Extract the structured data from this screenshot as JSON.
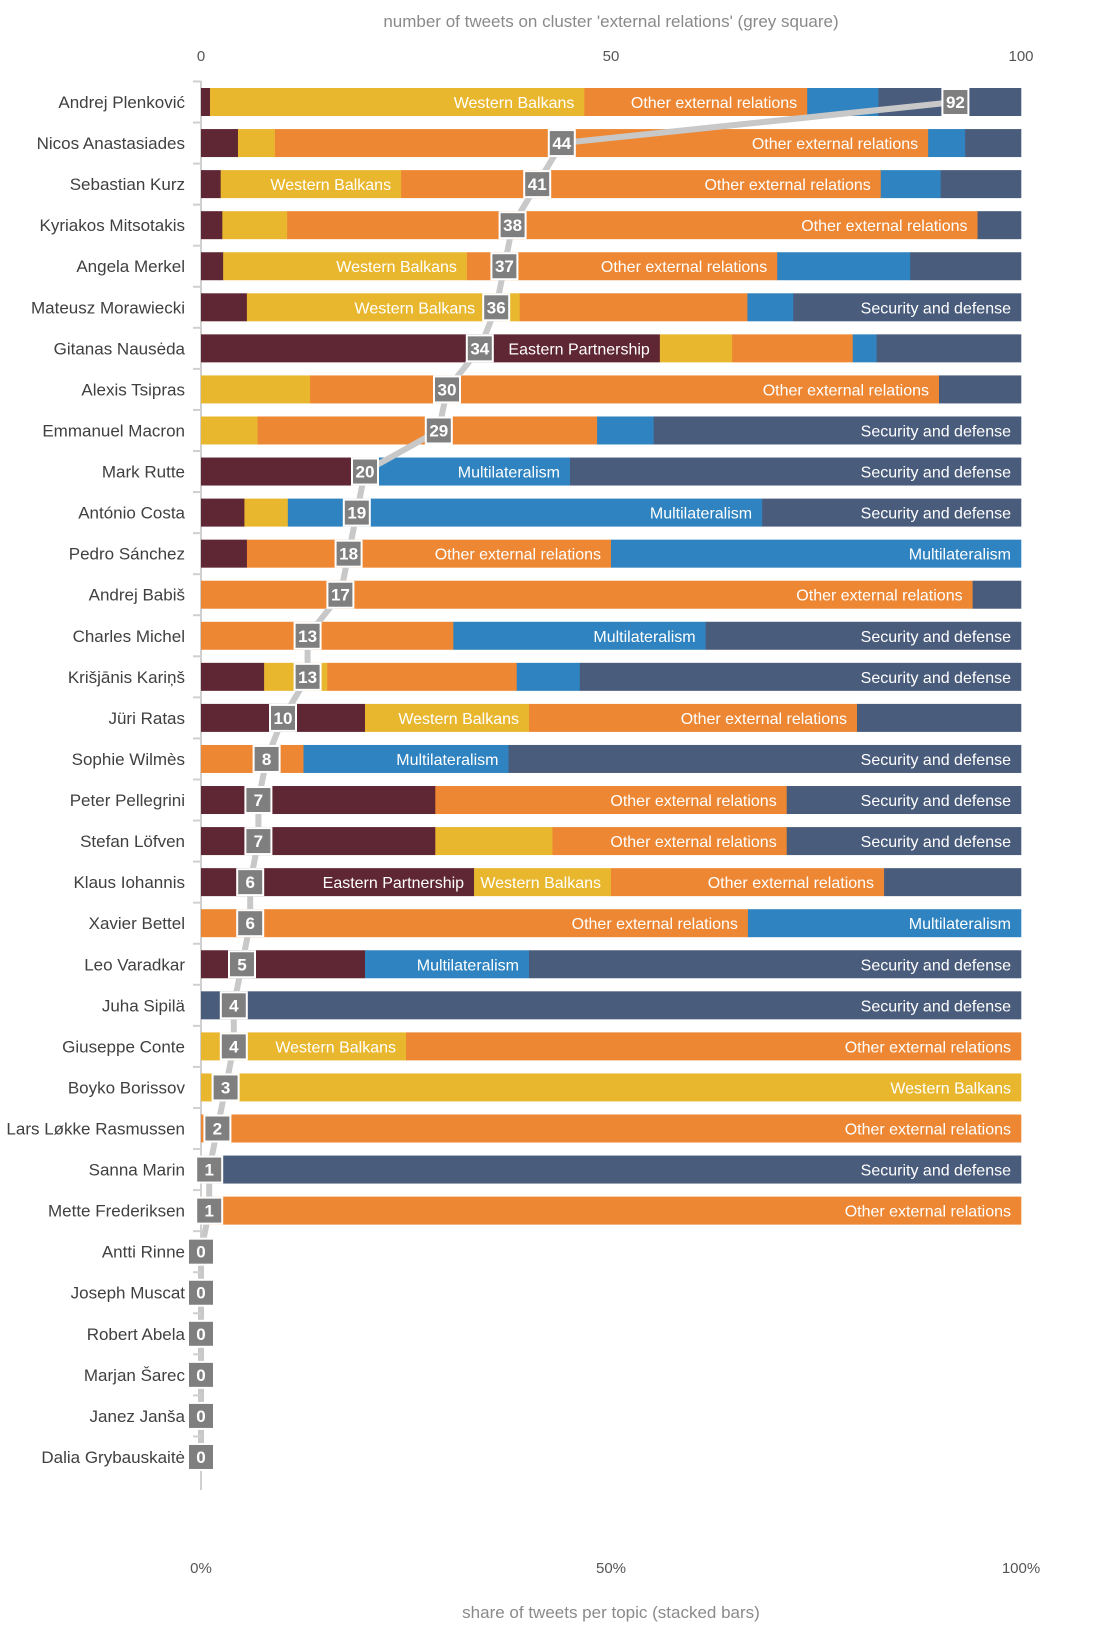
{
  "chart_data": {
    "type": "bar",
    "orientation": "horizontal-stacked",
    "top_axis_title": "number of tweets on cluster 'external relations' (grey square)",
    "bottom_axis_title": "share of tweets per topic (stacked bars)",
    "top_ticks": [
      "0",
      "50",
      "100"
    ],
    "top_range": [
      0,
      100
    ],
    "bottom_ticks": [
      "0%",
      "50%",
      "100%"
    ],
    "bottom_range": [
      0,
      100
    ],
    "grid": false,
    "legend": "none",
    "series": [
      {
        "name": "Eastern Partnership",
        "color": "#5f2634"
      },
      {
        "name": "Western Balkans",
        "color": "#e9b72e"
      },
      {
        "name": "Other external relations",
        "color": "#ed8733"
      },
      {
        "name": "Multilateralism",
        "color": "#2f83c0"
      },
      {
        "name": "Security and defense",
        "color": "#4a5c7b"
      }
    ],
    "marker_color": "#7f7f7f",
    "line_color": "#c8c8c8",
    "rows": [
      {
        "name": "Andrej Plenković",
        "count": 92,
        "shares": [
          1.1,
          45.7,
          27.2,
          8.7,
          17.4
        ],
        "labels": [
          "",
          "Western Balkans",
          "Other external relations",
          "",
          ""
        ]
      },
      {
        "name": "Nicos Anastasiades",
        "count": 44,
        "shares": [
          4.5,
          4.5,
          79.5,
          4.5,
          6.8
        ],
        "labels": [
          "",
          "",
          "Other external relations",
          "",
          ""
        ]
      },
      {
        "name": "Sebastian Kurz",
        "count": 41,
        "shares": [
          2.4,
          22.0,
          58.5,
          7.3,
          9.8
        ],
        "labels": [
          "",
          "Western Balkans",
          "Other external relations",
          "",
          ""
        ]
      },
      {
        "name": "Kyriakos Mitsotakis",
        "count": 38,
        "shares": [
          2.6,
          7.9,
          84.2,
          0,
          5.3
        ],
        "labels": [
          "",
          "",
          "Other external relations",
          "",
          ""
        ]
      },
      {
        "name": "Angela Merkel",
        "count": 37,
        "shares": [
          2.7,
          29.7,
          37.8,
          16.2,
          13.5
        ],
        "labels": [
          "",
          "Western Balkans",
          "Other external relations",
          "",
          ""
        ]
      },
      {
        "name": "Mateusz Morawiecki",
        "count": 36,
        "shares": [
          5.6,
          33.3,
          27.8,
          5.6,
          27.8
        ],
        "labels": [
          "",
          "Western Balkans",
          "",
          "",
          "Security and defense"
        ]
      },
      {
        "name": "Gitanas Nausėda",
        "count": 34,
        "shares": [
          55.9,
          8.8,
          14.7,
          2.9,
          17.6
        ],
        "labels": [
          "Eastern Partnership",
          "",
          "",
          "",
          ""
        ]
      },
      {
        "name": "Alexis Tsipras",
        "count": 30,
        "shares": [
          0,
          13.3,
          76.7,
          0,
          10.0
        ],
        "labels": [
          "",
          "",
          "Other external relations",
          "",
          ""
        ]
      },
      {
        "name": "Emmanuel Macron",
        "count": 29,
        "shares": [
          0,
          6.9,
          41.4,
          6.9,
          44.8
        ],
        "labels": [
          "",
          "",
          "",
          "",
          "Security and defense"
        ]
      },
      {
        "name": "Mark Rutte",
        "count": 20,
        "shares": [
          20.0,
          0,
          0,
          25.0,
          55.0
        ],
        "labels": [
          "",
          "",
          "",
          "Multilateralism",
          "Security and defense"
        ]
      },
      {
        "name": "António Costa",
        "count": 19,
        "shares": [
          5.3,
          5.3,
          0,
          57.9,
          31.6
        ],
        "labels": [
          "",
          "",
          "",
          "Multilateralism",
          "Security and defense"
        ]
      },
      {
        "name": "Pedro Sánchez",
        "count": 18,
        "shares": [
          5.6,
          0,
          44.4,
          50.0,
          0
        ],
        "labels": [
          "",
          "",
          "Other external relations",
          "Multilateralism",
          ""
        ]
      },
      {
        "name": "Andrej Babiš",
        "count": 17,
        "shares": [
          0,
          0,
          94.1,
          0,
          5.9
        ],
        "labels": [
          "",
          "",
          "Other external relations",
          "",
          ""
        ]
      },
      {
        "name": "Charles Michel",
        "count": 13,
        "shares": [
          0,
          0,
          30.8,
          30.8,
          38.5
        ],
        "labels": [
          "",
          "",
          "",
          "Multilateralism",
          "Security and defense"
        ]
      },
      {
        "name": "Krišjānis Kariņš",
        "count": 13,
        "shares": [
          7.7,
          7.7,
          23.1,
          7.7,
          53.8
        ],
        "labels": [
          "",
          "",
          "",
          "",
          "Security and defense"
        ]
      },
      {
        "name": "Jüri Ratas",
        "count": 10,
        "shares": [
          20,
          20,
          40,
          0,
          20
        ],
        "labels": [
          "",
          "Western Balkans",
          "Other external relations",
          "",
          ""
        ]
      },
      {
        "name": "Sophie Wilmès",
        "count": 8,
        "shares": [
          0,
          0,
          12.5,
          25,
          62.5
        ],
        "labels": [
          "",
          "",
          "",
          "Multilateralism",
          "Security and defense"
        ]
      },
      {
        "name": "Peter Pellegrini",
        "count": 7,
        "shares": [
          28.6,
          0,
          42.9,
          0,
          28.6
        ],
        "labels": [
          "",
          "",
          "Other external relations",
          "",
          "Security and defense"
        ]
      },
      {
        "name": "Stefan Löfven",
        "count": 7,
        "shares": [
          28.6,
          14.3,
          28.6,
          0,
          28.6
        ],
        "labels": [
          "",
          "",
          "Other external relations",
          "",
          "Security and defense"
        ]
      },
      {
        "name": "Klaus Iohannis",
        "count": 6,
        "shares": [
          33.3,
          16.7,
          33.3,
          0,
          16.7
        ],
        "labels": [
          "Eastern Partnership",
          "Western Balkans",
          "Other external relations",
          "",
          ""
        ]
      },
      {
        "name": "Xavier Bettel",
        "count": 6,
        "shares": [
          0,
          0,
          66.7,
          33.3,
          0
        ],
        "labels": [
          "",
          "",
          "Other external relations",
          "Multilateralism",
          ""
        ]
      },
      {
        "name": "Leo Varadkar",
        "count": 5,
        "shares": [
          20,
          0,
          0,
          20,
          60
        ],
        "labels": [
          "",
          "",
          "",
          "Multilateralism",
          "Security and defense"
        ]
      },
      {
        "name": "Juha Sipilä",
        "count": 4,
        "shares": [
          0,
          0,
          0,
          0,
          100
        ],
        "labels": [
          "",
          "",
          "",
          "",
          "Security and defense"
        ]
      },
      {
        "name": "Giuseppe Conte",
        "count": 4,
        "shares": [
          0,
          25,
          75,
          0,
          0
        ],
        "labels": [
          "",
          "Western Balkans",
          "Other external relations",
          "",
          ""
        ]
      },
      {
        "name": "Boyko Borissov",
        "count": 3,
        "shares": [
          0,
          100,
          0,
          0,
          0
        ],
        "labels": [
          "",
          "Western Balkans",
          "",
          "",
          ""
        ]
      },
      {
        "name": "Lars Løkke Rasmussen",
        "count": 2,
        "shares": [
          0,
          0,
          100,
          0,
          0
        ],
        "labels": [
          "",
          "",
          "Other external relations",
          "",
          ""
        ]
      },
      {
        "name": "Sanna Marin",
        "count": 1,
        "shares": [
          0,
          0,
          0,
          0,
          100
        ],
        "labels": [
          "",
          "",
          "",
          "",
          "Security and defense"
        ]
      },
      {
        "name": "Mette Frederiksen",
        "count": 1,
        "shares": [
          0,
          0,
          100,
          0,
          0
        ],
        "labels": [
          "",
          "",
          "Other external relations",
          "",
          ""
        ]
      },
      {
        "name": "Antti Rinne",
        "count": 0,
        "shares": [
          0,
          0,
          0,
          0,
          0
        ],
        "labels": [
          "",
          "",
          "",
          "",
          ""
        ]
      },
      {
        "name": "Joseph Muscat",
        "count": 0,
        "shares": [
          0,
          0,
          0,
          0,
          0
        ],
        "labels": [
          "",
          "",
          "",
          "",
          ""
        ]
      },
      {
        "name": "Robert Abela",
        "count": 0,
        "shares": [
          0,
          0,
          0,
          0,
          0
        ],
        "labels": [
          "",
          "",
          "",
          "",
          ""
        ]
      },
      {
        "name": "Marjan Šarec",
        "count": 0,
        "shares": [
          0,
          0,
          0,
          0,
          0
        ],
        "labels": [
          "",
          "",
          "",
          "",
          ""
        ]
      },
      {
        "name": "Janez Janša",
        "count": 0,
        "shares": [
          0,
          0,
          0,
          0,
          0
        ],
        "labels": [
          "",
          "",
          "",
          "",
          ""
        ]
      },
      {
        "name": "Dalia Grybauskaitė",
        "count": 0,
        "shares": [
          0,
          0,
          0,
          0,
          0
        ],
        "labels": [
          "",
          "",
          "",
          "",
          ""
        ]
      }
    ]
  }
}
